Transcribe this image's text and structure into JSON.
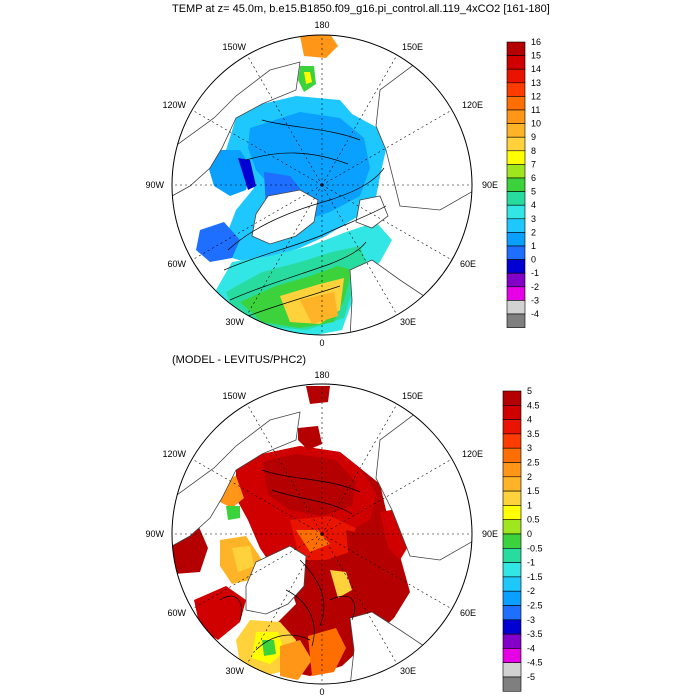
{
  "title_top": "TEMP at z=  45.0m, b.e15.B1850.f09_g16.pi_control.all.119_4xCO2 [161-180]",
  "title_bottom": "(MODEL - LEVITUS/PHC2)",
  "panels": [
    {
      "id": "top",
      "lon_labels": [
        "180",
        "150E",
        "120E",
        "90E",
        "60E",
        "30E",
        "0",
        "30W",
        "60W",
        "90W",
        "120W",
        "150W"
      ],
      "colorbar": {
        "labels": [
          "16",
          "15",
          "14",
          "13",
          "12",
          "11",
          "10",
          "9",
          "8",
          "7",
          "6",
          "5",
          "4",
          "3",
          "2",
          "1",
          "0",
          "-1",
          "-2",
          "-3",
          "-4"
        ],
        "colors": [
          "#b40000",
          "#d00000",
          "#e81400",
          "#ff3c00",
          "#ff6e00",
          "#ff9618",
          "#ffb428",
          "#ffd23c",
          "#ffff00",
          "#a0e61e",
          "#3cd23c",
          "#28dca0",
          "#32e6e6",
          "#1ec8ff",
          "#0aa0ff",
          "#1e6eff",
          "#0000d2",
          "#8200c8",
          "#e600e6",
          "#d2d2d2",
          "#7f7f7f"
        ]
      }
    },
    {
      "id": "bottom",
      "lon_labels": [
        "180",
        "150E",
        "120E",
        "90E",
        "60E",
        "30E",
        "0",
        "30W",
        "60W",
        "90W",
        "120W",
        "150W"
      ],
      "colorbar": {
        "labels": [
          "5",
          "4.5",
          "4",
          "3.5",
          "3",
          "2.5",
          "2",
          "1.5",
          "1",
          "0.5",
          "0",
          "-0.5",
          "-1",
          "-1.5",
          "-2",
          "-2.5",
          "-3",
          "-3.5",
          "-4",
          "-4.5",
          "-5"
        ],
        "colors": [
          "#b40000",
          "#d00000",
          "#e81400",
          "#ff3c00",
          "#ff6e00",
          "#ff9618",
          "#ffb428",
          "#ffd23c",
          "#ffff00",
          "#a0e61e",
          "#3cd23c",
          "#28dca0",
          "#32e6e6",
          "#1ec8ff",
          "#0aa0ff",
          "#1e6eff",
          "#0000d2",
          "#8200c8",
          "#e600e6",
          "#d2d2d2",
          "#7f7f7f"
        ]
      }
    }
  ]
}
